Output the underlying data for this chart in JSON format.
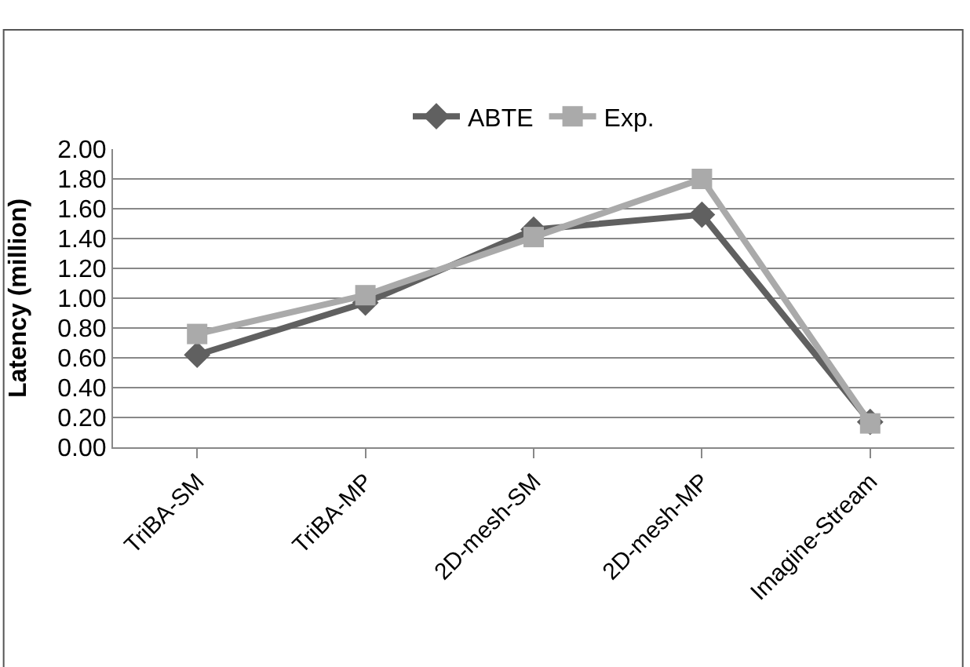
{
  "chart_data": {
    "type": "line",
    "ylabel": "Latency (million)",
    "categories": [
      "TriBA-SM",
      "TriBA-MP",
      "2D-mesh-SM",
      "2D-mesh-MP",
      "Imagine-Stream"
    ],
    "series": [
      {
        "name": "ABTE",
        "color": "#606060",
        "marker": "diamond",
        "values": [
          0.62,
          0.97,
          1.46,
          1.56,
          0.17
        ]
      },
      {
        "name": "Exp.",
        "color": "#aaaaaa",
        "marker": "square",
        "values": [
          0.76,
          1.02,
          1.41,
          1.8,
          0.16
        ]
      }
    ],
    "ylim": [
      0,
      2
    ],
    "yticks": [
      {
        "value": 0,
        "label": "0.00"
      },
      {
        "value": 0.2,
        "label": "0.20"
      },
      {
        "value": 0.4,
        "label": "0.40"
      },
      {
        "value": 0.6,
        "label": "0.60"
      },
      {
        "value": 0.8,
        "label": "0.80"
      },
      {
        "value": 1,
        "label": "1.00"
      },
      {
        "value": 1.2,
        "label": "1.20"
      },
      {
        "value": 1.4,
        "label": "1.40"
      },
      {
        "value": 1.6,
        "label": "1.60"
      },
      {
        "value": 1.8,
        "label": "1.80"
      },
      {
        "value": 2,
        "label": "2.00"
      }
    ],
    "grid": "y",
    "legend": "top",
    "line_style": "solid"
  }
}
